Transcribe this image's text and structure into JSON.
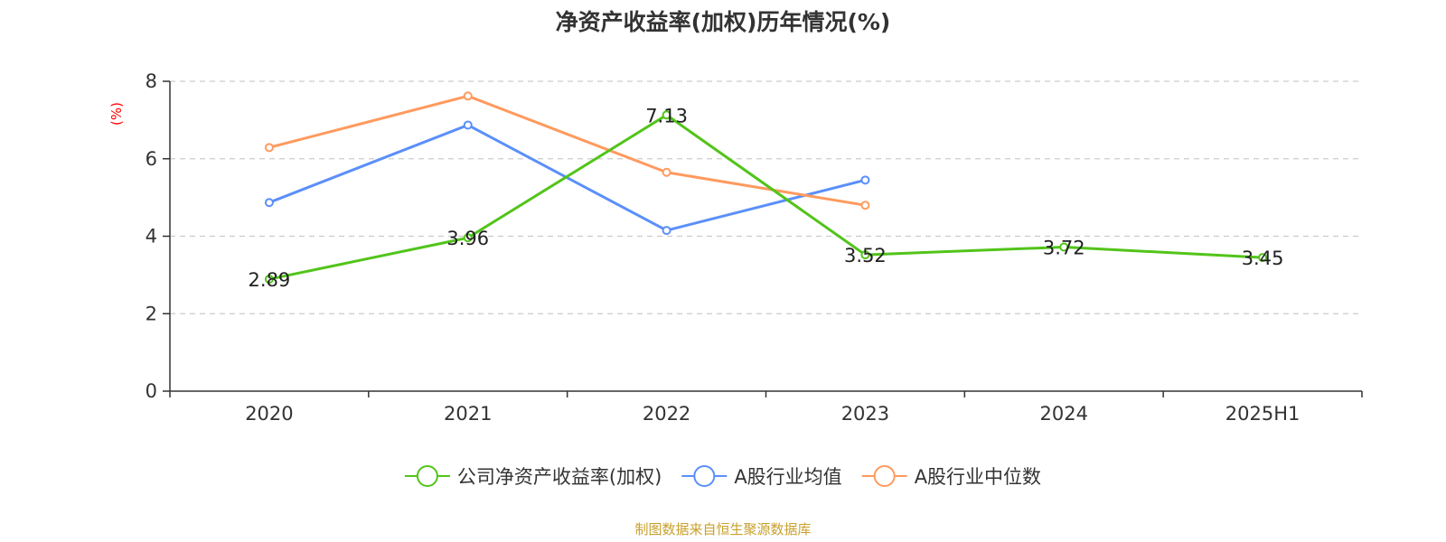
{
  "chart_data": {
    "type": "line",
    "title": "净资产收益率(加权)历年情况(%)",
    "ylabel": "(%)",
    "categories": [
      "2020",
      "2021",
      "2022",
      "2023",
      "2024",
      "2025H1"
    ],
    "ylim": [
      0,
      8
    ],
    "yticks": [
      0,
      2,
      4,
      6,
      8
    ],
    "grid": true,
    "legend_position": "bottom",
    "series": [
      {
        "name": "公司净资产收益率(加权)",
        "color": "#52c41a",
        "values": [
          2.89,
          3.96,
          7.13,
          3.52,
          3.72,
          3.45
        ],
        "labels": [
          "2.89",
          "3.96",
          "7.13",
          "3.52",
          "3.72",
          "3.45"
        ]
      },
      {
        "name": "A股行业均值",
        "color": "#5b8ff9",
        "values": [
          4.87,
          6.87,
          4.15,
          5.45,
          null,
          null
        ]
      },
      {
        "name": "A股行业中位数",
        "color": "#ff9a5e",
        "values": [
          6.29,
          7.62,
          5.65,
          4.8,
          null,
          null
        ]
      }
    ]
  },
  "source_text": "制图数据来自恒生聚源数据库",
  "colors": {
    "axis": "#333333",
    "grid": "#cccccc",
    "ylabel": "#ff0000",
    "source": "#c8a02c"
  }
}
